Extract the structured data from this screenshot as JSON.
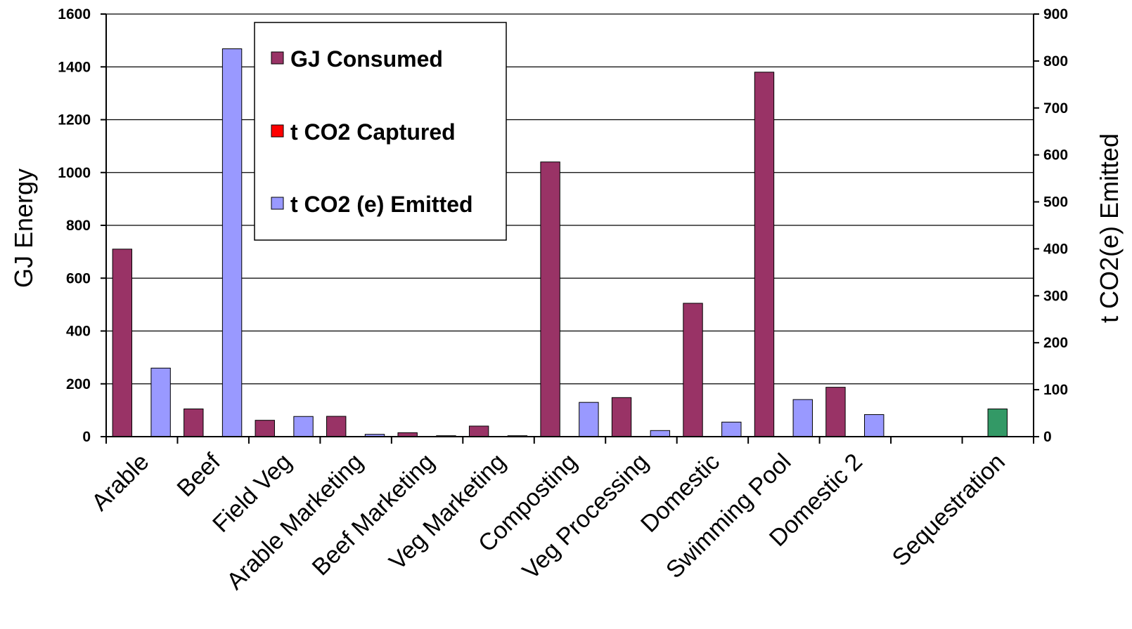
{
  "chart_data": {
    "type": "bar",
    "categories": [
      "Arable",
      "Beef",
      "Field Veg",
      "Arable Marketing",
      "Beef Marketing",
      "Veg Marketing",
      "Composting",
      "Veg Processing",
      "Domestic",
      "Swimming Pool",
      "Domestic 2",
      "",
      "Sequestration"
    ],
    "series": [
      {
        "name": "GJ Consumed",
        "axis": "left",
        "color": "#993366",
        "values": [
          710,
          105,
          62,
          77,
          15,
          40,
          1040,
          148,
          505,
          1380,
          187,
          0,
          0
        ]
      },
      {
        "name": "t CO2 Captured",
        "axis": "right",
        "color": "#ff0000",
        "values": [
          0,
          0,
          0,
          0,
          0,
          0,
          0,
          0,
          0,
          0,
          0,
          0,
          0
        ]
      },
      {
        "name": "t CO2 (e) Emitted",
        "axis": "right",
        "color": "#9999ff",
        "values": [
          146,
          826,
          43,
          5,
          2,
          2,
          73,
          13,
          31,
          79,
          47,
          0,
          0
        ]
      }
    ],
    "sequestration_bar": {
      "category": "Sequestration",
      "axis": "right",
      "color": "#339966",
      "value": 59
    },
    "ylabel": "GJ Energy",
    "y2label": "t CO2(e) Emitted",
    "ylim": [
      0,
      1600
    ],
    "y2lim": [
      0,
      900
    ],
    "yticks": [
      "0",
      "200",
      "400",
      "600",
      "800",
      "1000",
      "1200",
      "1400",
      "1600"
    ],
    "y2ticks": [
      "0",
      "100",
      "200",
      "300",
      "400",
      "500",
      "600",
      "700",
      "800",
      "900"
    ],
    "grid": true,
    "legend_position": "top-center"
  }
}
